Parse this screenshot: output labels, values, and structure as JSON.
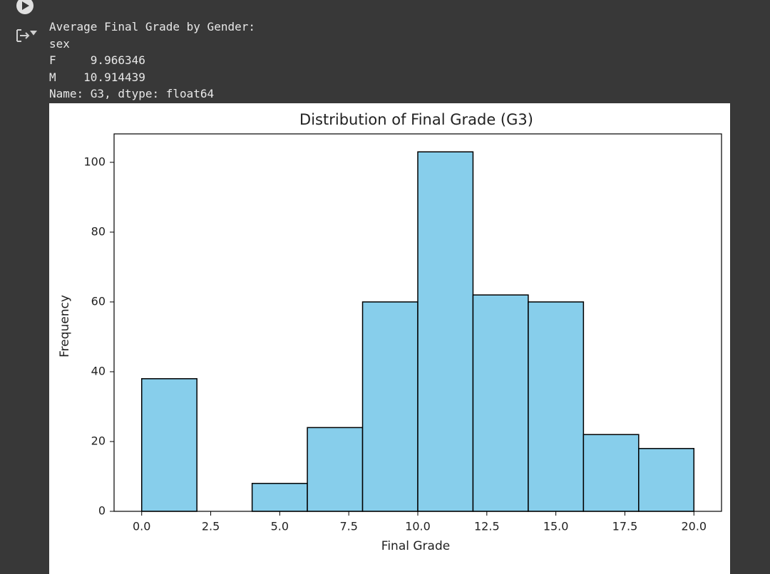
{
  "output": {
    "lines": [
      "Average Final Grade by Gender:",
      "sex",
      "F     9.966346",
      "M    10.914439",
      "Name: G3, dtype: float64"
    ]
  },
  "chart_data": {
    "type": "histogram",
    "title": "Distribution of Final Grade (G3)",
    "x_label": "Final Grade",
    "y_label": "Frequency",
    "bins": [
      0,
      2,
      4,
      6,
      8,
      10,
      12,
      14,
      16,
      18,
      20
    ],
    "values": [
      38,
      0,
      8,
      24,
      60,
      103,
      62,
      60,
      22,
      18
    ],
    "color": "#87ceeb",
    "edgecolor": "#000000",
    "xlim": [
      -1,
      21
    ],
    "xticks": [
      {
        "value": 0,
        "label": "0.0"
      },
      {
        "value": 2.5,
        "label": "2.5"
      },
      {
        "value": 5,
        "label": "5.0"
      },
      {
        "value": 7.5,
        "label": "7.5"
      },
      {
        "value": 10,
        "label": "10.0"
      },
      {
        "value": 12.5,
        "label": "12.5"
      },
      {
        "value": 15,
        "label": "15.0"
      },
      {
        "value": 17.5,
        "label": "17.5"
      },
      {
        "value": 20,
        "label": "20.0"
      }
    ],
    "ylim": [
      0,
      108.15
    ],
    "yticks": [
      0,
      20,
      40,
      60,
      80,
      100
    ],
    "grid": false
  }
}
